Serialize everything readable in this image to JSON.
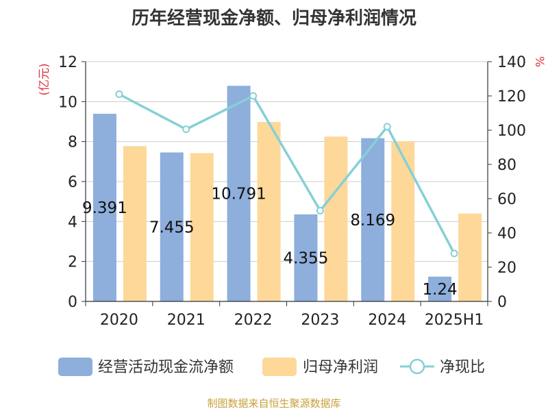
{
  "title": "历年经营现金净额、归母净利润情况",
  "source": "制图数据来自恒生聚源数据库",
  "chart_data": {
    "type": "bar",
    "categories": [
      "2020",
      "2021",
      "2022",
      "2023",
      "2024",
      "2025H1"
    ],
    "left_axis": {
      "unit": "(亿元)",
      "ylim": [
        0,
        12
      ],
      "ticks": [
        0,
        2,
        4,
        6,
        8,
        10,
        12
      ]
    },
    "right_axis": {
      "unit": "%",
      "ylim": [
        0,
        140
      ],
      "ticks": [
        0,
        20,
        40,
        60,
        80,
        100,
        120,
        140
      ]
    },
    "series": [
      {
        "name": "经营活动现金流净额",
        "type": "bar",
        "axis": "left",
        "color": "#8eaedc",
        "values": [
          9.391,
          7.455,
          10.791,
          4.355,
          8.169,
          1.24
        ],
        "labels": [
          "9.391",
          "7.455",
          "10.791",
          "4.355",
          "8.169",
          "1.24"
        ]
      },
      {
        "name": "归母净利润",
        "type": "bar",
        "axis": "left",
        "color": "#fdd899",
        "values": [
          7.77,
          7.42,
          8.98,
          8.25,
          8.02,
          4.4
        ]
      },
      {
        "name": "净现比",
        "type": "line",
        "axis": "right",
        "color": "#85d0d6",
        "values": [
          121,
          100.5,
          120,
          53,
          102,
          28
        ]
      }
    ],
    "grid": true,
    "legend_position": "bottom"
  }
}
